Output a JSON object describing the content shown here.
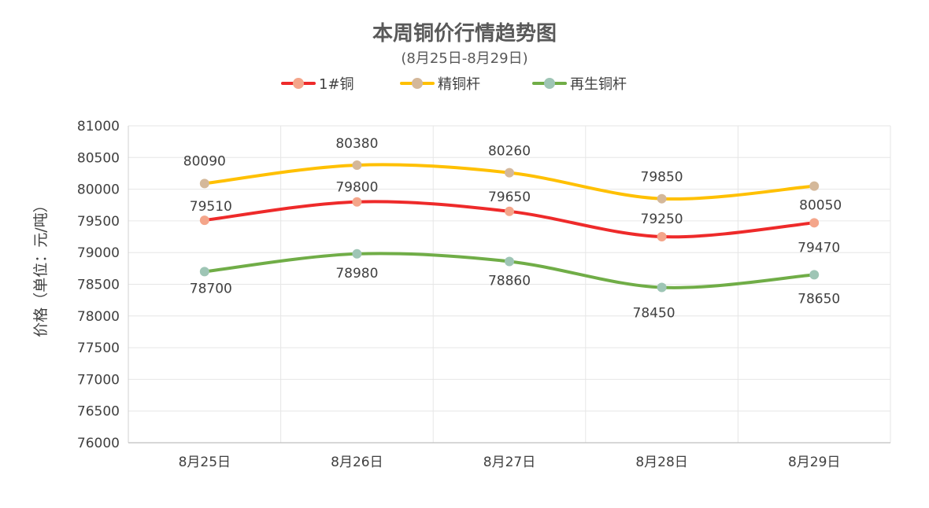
{
  "chart_data": {
    "type": "line",
    "title": "本周铜价行情趋势图",
    "subtitle": "(8月25日-8月29日)",
    "ylabel": "价格（单位：元/吨）",
    "xlabel": "",
    "ylim": [
      76000,
      81000
    ],
    "y_ticks": [
      "81000",
      "80500",
      "80000",
      "79500",
      "79000",
      "78500",
      "78000",
      "77500",
      "77000",
      "76500",
      "76000"
    ],
    "categories": [
      "8月25日",
      "8月26日",
      "8月27日",
      "8月28日",
      "8月29日"
    ],
    "grid": true,
    "smooth": true,
    "legend_position": "top",
    "series": [
      {
        "name": "1#铜",
        "color": "#ee2a2a",
        "marker_color": "#f4a58a",
        "values": [
          79510,
          79800,
          79650,
          79250,
          79470
        ]
      },
      {
        "name": "精铜杆",
        "color": "#ffc000",
        "marker_color": "#d4b89a",
        "values": [
          80090,
          80380,
          80260,
          79850,
          80050
        ]
      },
      {
        "name": "再生铜杆",
        "color": "#70ad47",
        "marker_color": "#9ec5b5",
        "values": [
          78700,
          78980,
          78860,
          78450,
          78650
        ]
      }
    ]
  }
}
